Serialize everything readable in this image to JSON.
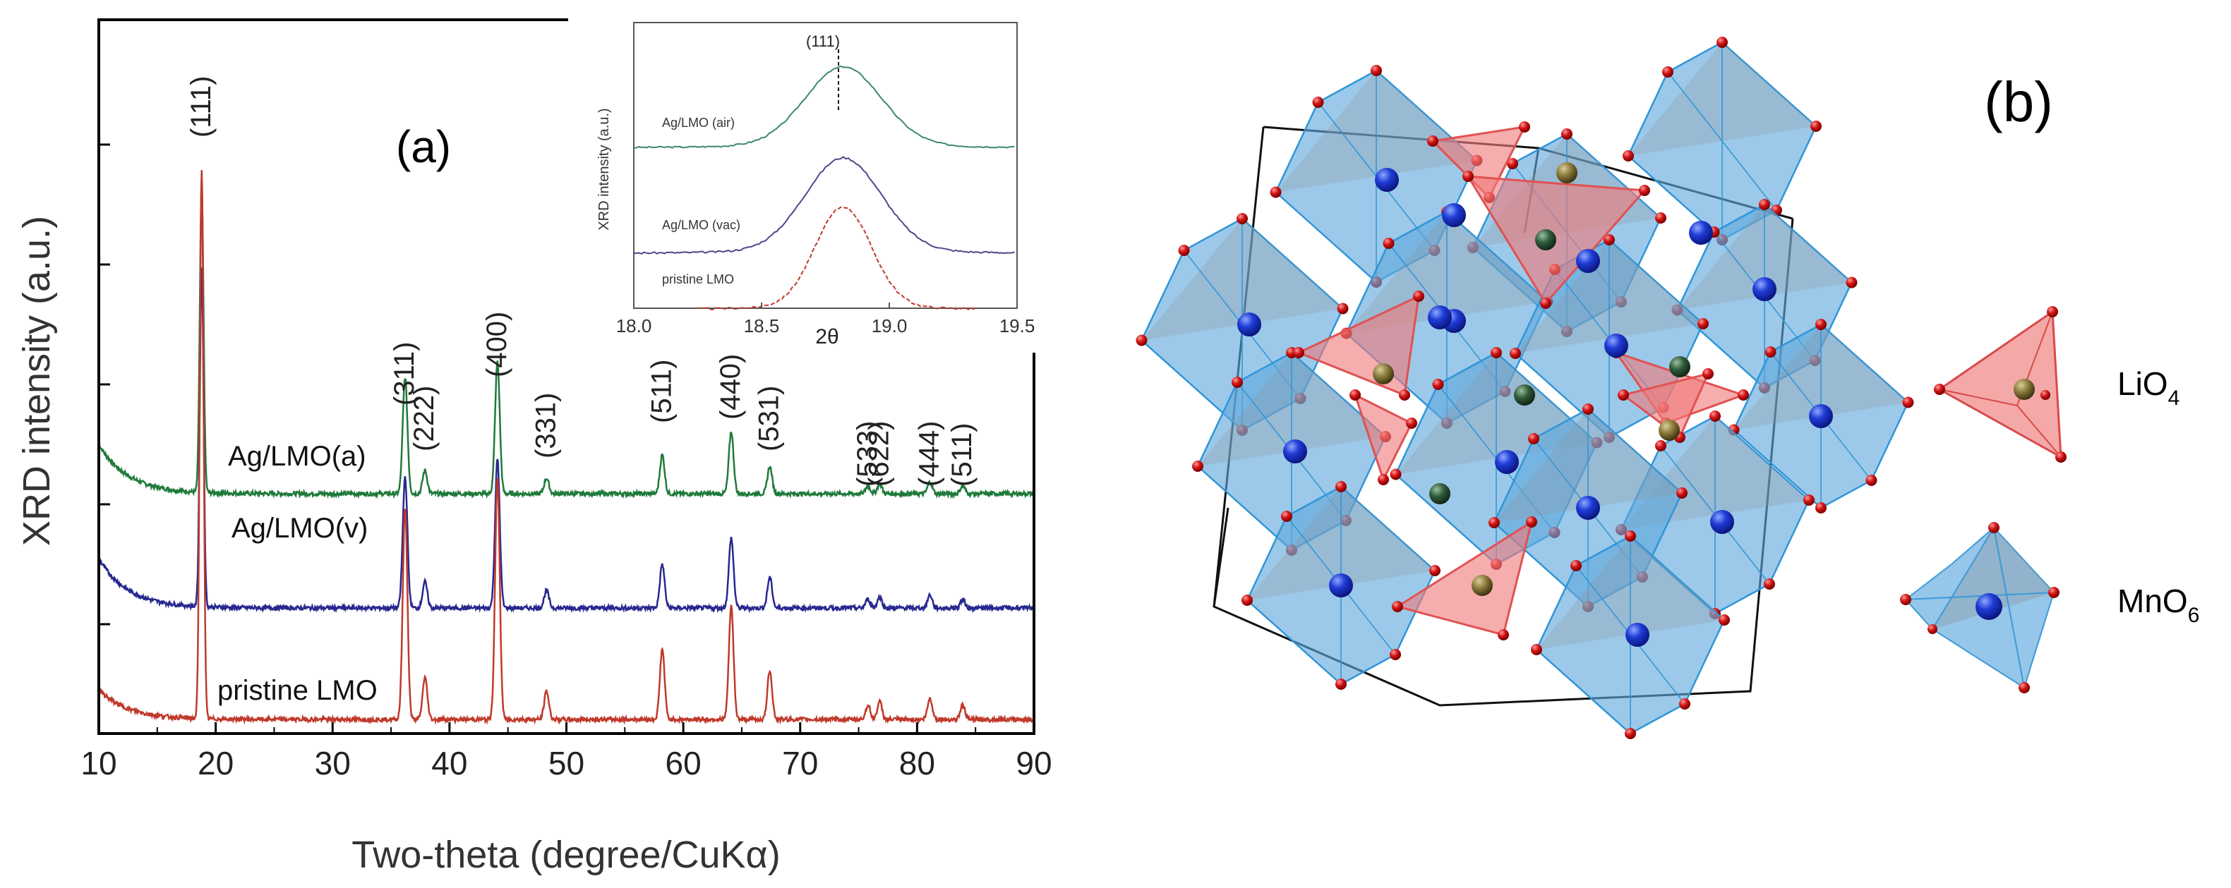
{
  "chart_data": {
    "type": "line",
    "panel_label": "(a)",
    "xlabel": "Two-theta (degree/CuKα)",
    "ylabel": "XRD intensity (a.u.)",
    "xlim": [
      10,
      90
    ],
    "xticks": [
      10,
      20,
      30,
      40,
      50,
      60,
      70,
      80,
      90
    ],
    "y_ticks_labeled": false,
    "series": [
      {
        "name": "Ag/LMO(a)",
        "color": "#1f7a3a",
        "offset": 0.62
      },
      {
        "name": "Ag/LMO(v)",
        "color": "#27288f",
        "offset": 0.35
      },
      {
        "name": "pristine LMO",
        "color": "#c0392b",
        "offset": 0.0
      }
    ],
    "peaks": [
      {
        "label": "(111)",
        "x": 18.8,
        "height": 0.78
      },
      {
        "label": "(311)",
        "x": 36.2,
        "height": 0.3
      },
      {
        "label": "(222)",
        "x": 37.9,
        "height": 0.06
      },
      {
        "label": "(400)",
        "x": 44.1,
        "height": 0.34
      },
      {
        "label": "(331)",
        "x": 48.3,
        "height": 0.04
      },
      {
        "label": "(511)",
        "x": 58.2,
        "height": 0.1
      },
      {
        "label": "(440)",
        "x": 64.1,
        "height": 0.16
      },
      {
        "label": "(531)",
        "x": 67.4,
        "height": 0.07
      },
      {
        "label": "(533)",
        "x": 75.8,
        "height": 0.02
      },
      {
        "label": "(622)",
        "x": 76.8,
        "height": 0.025
      },
      {
        "label": "(444)",
        "x": 81.1,
        "height": 0.03
      },
      {
        "label": "(511)",
        "x": 83.9,
        "height": 0.02
      }
    ],
    "inset": {
      "type": "line",
      "xlabel": "2θ",
      "ylabel": "XRD intensity (a.u.)",
      "xlim": [
        18.0,
        19.5
      ],
      "xticks": [
        "18.0",
        "18.5",
        "19.0",
        "19.5"
      ],
      "peak_label": "(111)",
      "peak_x": 18.82,
      "series": [
        {
          "name": "Ag/LMO (air)",
          "color": "#3a8a6a"
        },
        {
          "name": "Ag/LMO (vac)",
          "color": "#4a4a8a"
        },
        {
          "name": "pristine LMO",
          "color": "#c0392b"
        }
      ]
    }
  },
  "structure": {
    "panel_label": "(b)",
    "legend": [
      {
        "formula": "LiO",
        "subscript": "4",
        "color": "#f08080"
      },
      {
        "formula": "MnO",
        "subscript": "6",
        "color": "#6aaee0"
      }
    ]
  }
}
